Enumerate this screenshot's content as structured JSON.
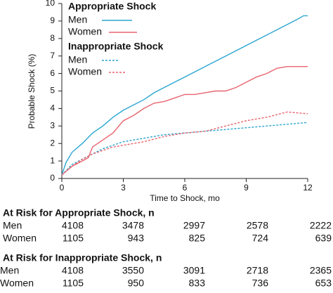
{
  "chart_data": {
    "type": "line",
    "y_label": "Probable Shock (%)",
    "x_label": "Time to Shock, mo",
    "xlim": [
      0,
      12
    ],
    "xticks": [
      0,
      3,
      6,
      9,
      12
    ],
    "ylim": [
      0,
      10
    ],
    "yticks": [
      0,
      1,
      2,
      3,
      4,
      5,
      6,
      7,
      8,
      9,
      10
    ],
    "legend_groups": [
      "Appropriate Shock",
      "Inappropriate Shock"
    ],
    "series": [
      {
        "name": "Men",
        "group": 0,
        "color": "#2aa6d0",
        "dashed": false,
        "x": [
          0,
          0.2,
          0.5,
          1,
          1.5,
          2,
          2.5,
          3,
          3.5,
          4,
          4.5,
          5,
          5.5,
          6,
          6.5,
          7,
          7.5,
          8,
          8.5,
          9,
          9.5,
          10,
          10.5,
          11,
          11.5,
          11.8,
          12
        ],
        "values": [
          0.2,
          0.9,
          1.5,
          2.0,
          2.6,
          3.0,
          3.5,
          3.9,
          4.2,
          4.5,
          4.9,
          5.2,
          5.5,
          5.8,
          6.1,
          6.4,
          6.7,
          7.0,
          7.3,
          7.6,
          7.9,
          8.2,
          8.5,
          8.8,
          9.1,
          9.3,
          9.3
        ]
      },
      {
        "name": "Women",
        "group": 0,
        "color": "#e8646e",
        "dashed": false,
        "x": [
          0,
          0.5,
          1,
          1.3,
          1.5,
          2,
          2.5,
          3,
          3.5,
          4,
          4.5,
          5,
          5.5,
          6,
          6.5,
          7,
          7.5,
          8,
          8.5,
          9,
          9.5,
          10,
          10.5,
          11,
          11.5,
          12
        ],
        "values": [
          0.2,
          0.7,
          1.0,
          1.2,
          1.8,
          2.2,
          2.6,
          3.3,
          3.6,
          4.0,
          4.3,
          4.4,
          4.6,
          4.8,
          4.8,
          4.9,
          5.0,
          5.0,
          5.2,
          5.5,
          5.8,
          6.0,
          6.3,
          6.4,
          6.4,
          6.4
        ]
      },
      {
        "name": "Men",
        "group": 1,
        "color": "#2aa6d0",
        "dashed": true,
        "x": [
          0,
          0.5,
          1,
          1.5,
          2,
          2.5,
          3,
          4,
          5,
          6,
          7,
          8,
          9,
          10,
          11,
          12
        ],
        "values": [
          0.2,
          0.8,
          1.1,
          1.4,
          1.7,
          1.9,
          2.1,
          2.3,
          2.5,
          2.6,
          2.7,
          2.8,
          2.9,
          3.0,
          3.1,
          3.2
        ]
      },
      {
        "name": "Women",
        "group": 1,
        "color": "#e8646e",
        "dashed": true,
        "x": [
          0,
          0.5,
          1,
          1.5,
          2,
          2.5,
          3,
          4,
          5,
          6,
          7,
          8,
          9,
          10,
          11,
          12
        ],
        "values": [
          0.2,
          0.7,
          1.1,
          1.4,
          1.6,
          1.8,
          1.9,
          2.1,
          2.4,
          2.6,
          2.7,
          3.0,
          3.3,
          3.5,
          3.8,
          3.7
        ]
      }
    ],
    "at_risk": [
      {
        "title": "At Risk for Appropriate Shock, n",
        "rows": [
          {
            "name": "Men",
            "values": [
              "4108",
              "3478",
              "2997",
              "2578",
              "2222"
            ]
          },
          {
            "name": "Women",
            "values": [
              "1105",
              "943",
              "825",
              "724",
              "639"
            ]
          }
        ]
      },
      {
        "title": "At Risk for Inappropriate Shock, n",
        "rows": [
          {
            "name": "Men",
            "values": [
              "4108",
              "3550",
              "3091",
              "2718",
              "2365"
            ]
          },
          {
            "name": "Women",
            "values": [
              "1105",
              "950",
              "833",
              "736",
              "653"
            ]
          }
        ]
      }
    ]
  }
}
